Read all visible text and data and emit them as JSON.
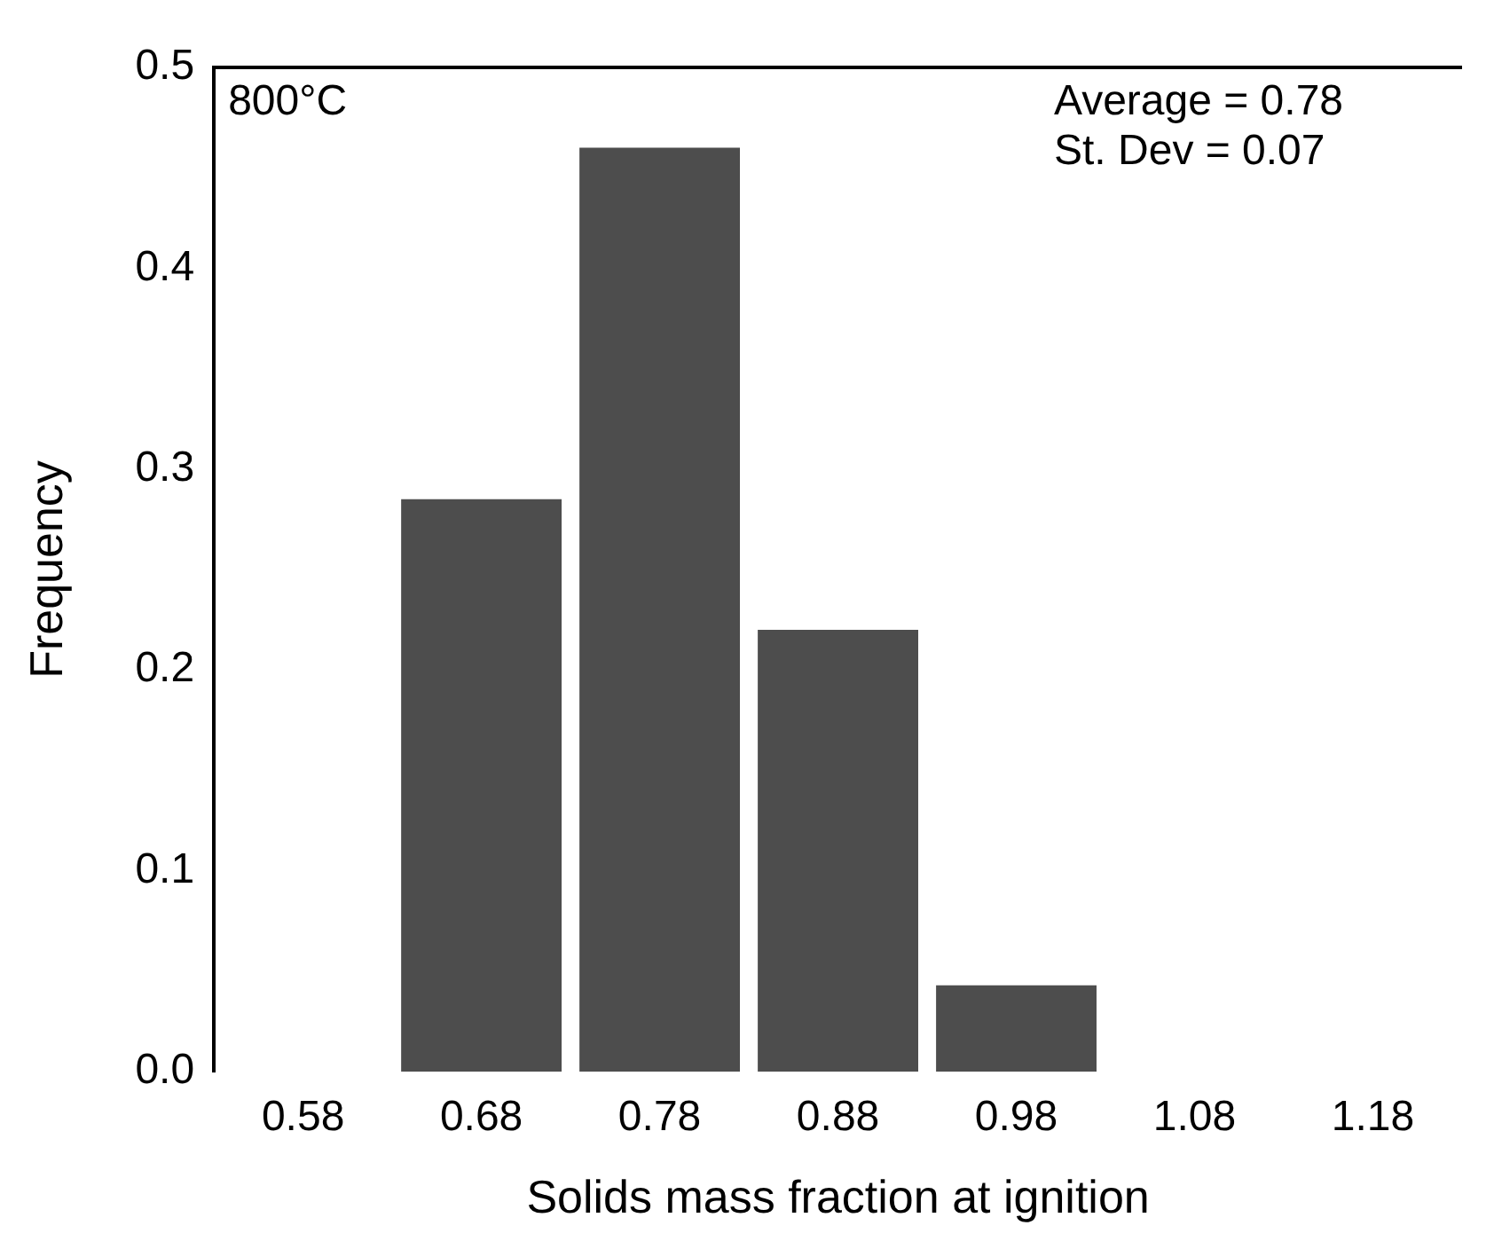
{
  "chart_data": {
    "type": "bar",
    "xlabel": "Solids mass fraction at ignition",
    "ylabel": "Frequency",
    "categories": [
      "0.58",
      "0.68",
      "0.78",
      "0.88",
      "0.98",
      "1.08",
      "1.18"
    ],
    "values": [
      0,
      0.285,
      0.46,
      0.22,
      0.043,
      0,
      0
    ],
    "color": "#4d4d4d",
    "ylim": [
      0,
      0.5
    ],
    "yticks": [
      {
        "value": 0,
        "label": "0.0"
      },
      {
        "value": 0.1,
        "label": "0.1"
      },
      {
        "value": 0.2,
        "label": "0.2"
      },
      {
        "value": 0.3,
        "label": "0.3"
      },
      {
        "value": 0.4,
        "label": "0.4"
      },
      {
        "value": 0.5,
        "label": "0.5"
      }
    ],
    "annotations": [
      "800°C",
      "Average = 0.78",
      "St. Dev = 0.07"
    ],
    "grid": false,
    "legend": false
  }
}
